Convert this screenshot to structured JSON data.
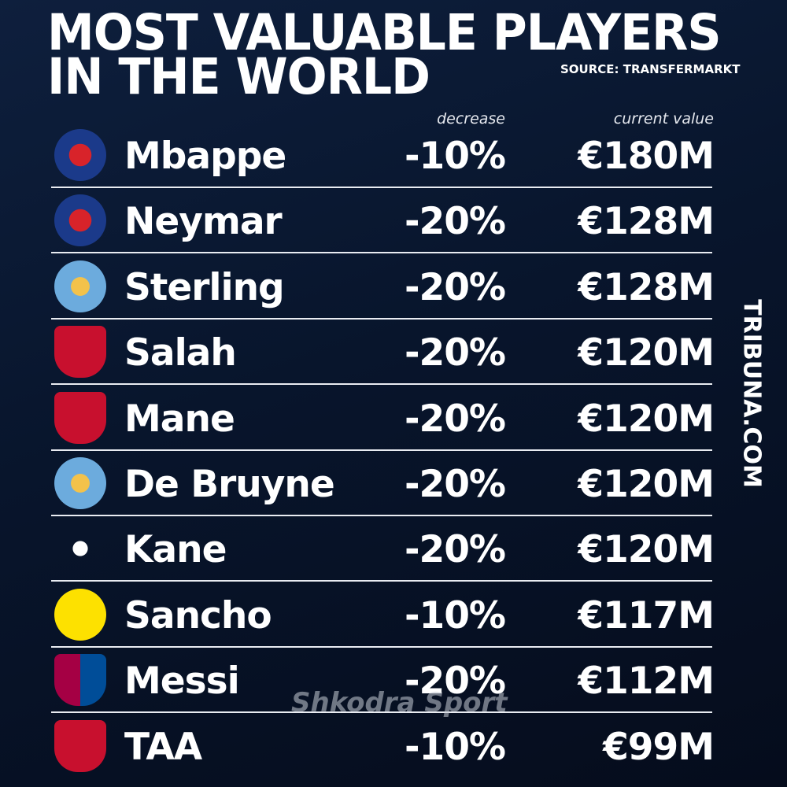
{
  "header": {
    "title_line1": "MOST VALUABLE PLAYERS",
    "title_line2": "IN THE WORLD",
    "source": "SOURCE: TRANSFERMARKT"
  },
  "table": {
    "columns": [
      "decrease",
      "current value"
    ],
    "rows": [
      [
        "Mbappe",
        "-10%",
        "€180M"
      ],
      [
        "Neymar",
        "-20%",
        "€128M"
      ],
      [
        "Sterling",
        "-20%",
        "€128M"
      ],
      [
        "Salah",
        "-20%",
        "€120M"
      ],
      [
        "Mane",
        "-20%",
        "€120M"
      ],
      [
        "De Bruyne",
        "-20%",
        "€120M"
      ],
      [
        "Kane",
        "-20%",
        "€120M"
      ],
      [
        "Sancho",
        "-10%",
        "€117M"
      ],
      [
        "Messi",
        "-20%",
        "€112M"
      ],
      [
        "TAA",
        "-10%",
        "€99M"
      ]
    ]
  },
  "side_credit": "TRIBUNA.COM",
  "watermark": "Shkodra Sport"
}
